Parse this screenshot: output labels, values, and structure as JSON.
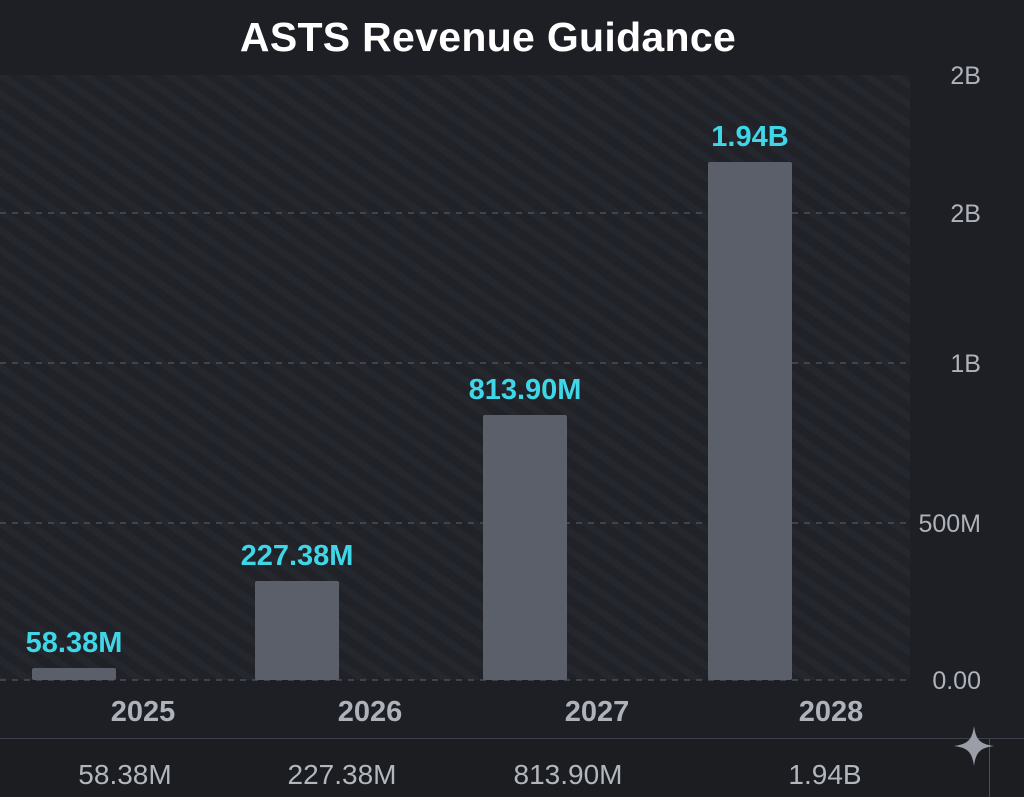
{
  "title": "ASTS Revenue Guidance",
  "chart_data": {
    "type": "bar",
    "categories": [
      "2025",
      "2026",
      "2027",
      "2028"
    ],
    "values": [
      58380000,
      227380000,
      813900000,
      1940000000
    ],
    "data_labels": [
      "58.38M",
      "227.38M",
      "813.90M",
      "1.94B"
    ],
    "y_ticks": [
      {
        "value": 0,
        "label": "0.00"
      },
      {
        "value": 500000000,
        "label": "500M"
      },
      {
        "value": 1000000000,
        "label": "1B"
      },
      {
        "value": 1500000000,
        "label": "2B"
      },
      {
        "value": 2000000000,
        "label": "2B"
      }
    ],
    "ylim": [
      0,
      2000000000
    ],
    "grid": true,
    "colors": {
      "bar": "#5b5f6a",
      "label": "#3fd6e8",
      "tick": "#aeb2ba",
      "grid": "#4a4e56"
    }
  },
  "footer": {
    "values": [
      "58.38M",
      "227.38M",
      "813.90M",
      "1.94B"
    ]
  },
  "icons": {
    "corner": "sparkle-icon"
  }
}
